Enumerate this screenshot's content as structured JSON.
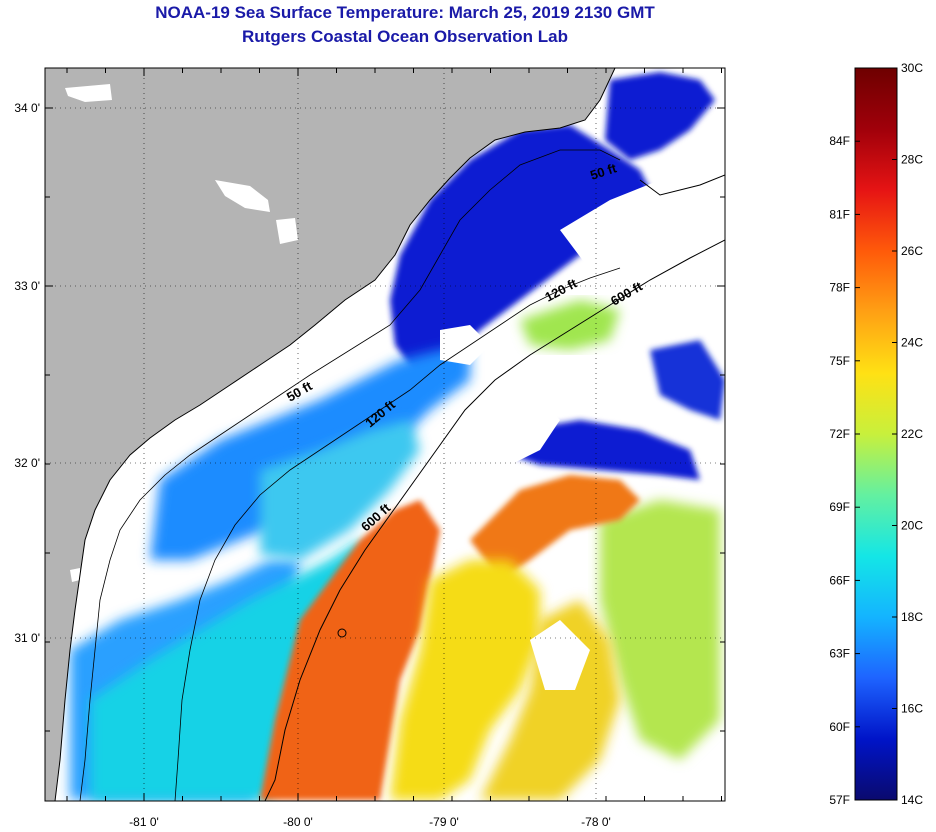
{
  "title": {
    "line1": "NOAA-19 Sea Surface Temperature:  March 25, 2019 2130 GMT",
    "line2": "Rutgers Coastal Ocean Observation Lab"
  },
  "map": {
    "lat_ticks": [
      "34 0'",
      "33 0'",
      "32 0'",
      "31 0'"
    ],
    "lon_ticks": [
      "-81 0'",
      "-80 0'",
      "-79 0'",
      "-78 0'"
    ],
    "contour_labels": [
      "50 ft",
      "50 ft",
      "120 ft",
      "120 ft",
      "600 ft",
      "600 ft"
    ],
    "colors": {
      "land": "#b4b4b4",
      "cloud": "#ffffff",
      "cold": "#0a1ed2",
      "cool": "#1e8cff",
      "mild": "#19d2e6",
      "warm_green": "#a0e650",
      "warm": "#f5dc14",
      "hot": "#f06414"
    }
  },
  "colorbar": {
    "fahrenheit": [
      "84F",
      "81F",
      "78F",
      "75F",
      "72F",
      "69F",
      "66F",
      "63F",
      "60F",
      "57F"
    ],
    "celsius": [
      "30C",
      "28C",
      "26C",
      "24C",
      "22C",
      "20C",
      "18C",
      "16C",
      "14C"
    ],
    "gradient": [
      "#0a0a6e",
      "#0014c8",
      "#1e64ff",
      "#14b4ff",
      "#14e6e6",
      "#64f0a0",
      "#c8f03c",
      "#ffe114",
      "#ffa014",
      "#ff5a0a",
      "#e61414",
      "#a0000a",
      "#6e0000"
    ]
  }
}
